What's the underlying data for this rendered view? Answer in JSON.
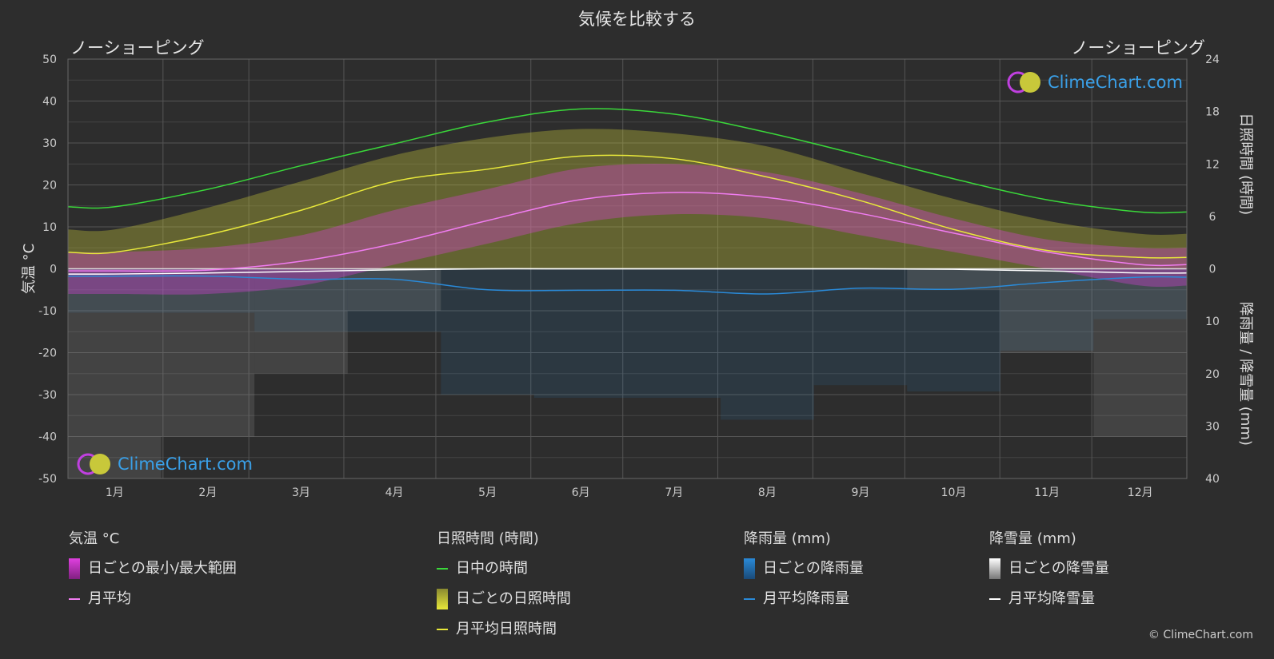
{
  "header": {
    "title": "気候を比較する",
    "city_left": "ノーショーピング",
    "city_right": "ノーショーピング"
  },
  "brand": {
    "text": "ClimeChart.com",
    "copyright": "© ClimeChart.com"
  },
  "colors": {
    "background": "#2d2d2d",
    "daylight": "#3ad83a",
    "sunshine_line": "#e8e83a",
    "temp_avg_line": "#f07cf0",
    "rain_line": "#2a8ad8",
    "snow_line": "#ffffff",
    "temp_range": "#e040e0",
    "sunshine_fill": "#c8c83a"
  },
  "chart_data": {
    "type": "line",
    "x_categories": [
      "1月",
      "2月",
      "3月",
      "4月",
      "5月",
      "6月",
      "7月",
      "8月",
      "9月",
      "10月",
      "11月",
      "12月"
    ],
    "left_axis": {
      "label": "気温 °C",
      "range": [
        -50,
        50
      ],
      "ticks": [
        "50",
        "40",
        "30",
        "20",
        "10",
        "0",
        "-10",
        "-20",
        "-30",
        "-40",
        "-50"
      ]
    },
    "right_axis_top": {
      "label": "日照時間 (時間)",
      "range": [
        0,
        24
      ],
      "ticks": [
        "24",
        "18",
        "12",
        "6",
        "0"
      ]
    },
    "right_axis_bottom": {
      "label": "降雨量 / 降雪量 (mm)",
      "range": [
        0,
        40
      ],
      "ticks": [
        "10",
        "20",
        "30",
        "40"
      ]
    },
    "series": [
      {
        "name": "日中の時間",
        "unit": "hours",
        "values": [
          7.1,
          9.1,
          11.8,
          14.3,
          16.8,
          18.3,
          17.7,
          15.6,
          13.0,
          10.3,
          7.9,
          6.5
        ]
      },
      {
        "name": "月平均日照時間",
        "unit": "hours",
        "values": [
          1.9,
          3.9,
          6.7,
          10.0,
          11.4,
          12.9,
          12.6,
          10.5,
          7.8,
          4.5,
          2.1,
          1.3
        ]
      },
      {
        "name": "月平均",
        "unit": "°C",
        "values": [
          -0.5,
          -0.3,
          1.8,
          6.0,
          11.5,
          16.5,
          18.2,
          17.0,
          13.2,
          8.5,
          4.0,
          1.0
        ]
      },
      {
        "name": "月平均降雨量",
        "unit": "mm",
        "values": [
          1.4,
          1.4,
          2.0,
          2.0,
          4.0,
          4.1,
          4.1,
          4.8,
          3.7,
          3.9,
          2.6,
          1.6
        ]
      },
      {
        "name": "月平均降雪量",
        "unit": "mm",
        "values": [
          1.0,
          0.8,
          0.5,
          0.2,
          0.0,
          0.0,
          0.0,
          0.0,
          0.0,
          0.1,
          0.4,
          0.8
        ]
      }
    ],
    "daily_temp_range": {
      "min": [
        -6,
        -6,
        -4,
        1,
        6,
        11,
        13,
        12,
        8,
        4,
        0,
        -4
      ],
      "max": [
        4,
        5,
        8,
        14,
        19,
        24,
        25,
        23,
        18,
        12,
        7,
        5
      ]
    },
    "daily_sunshine_envelope_hours": [
      4.5,
      7.0,
      10.0,
      13.0,
      15.0,
      16.0,
      15.5,
      14.0,
      11.0,
      8.0,
      5.5,
      4.0
    ]
  },
  "legend": {
    "temp": {
      "heading": "気温 °C",
      "range": "日ごとの最小/最大範囲",
      "avg": "月平均"
    },
    "sun": {
      "heading": "日照時間 (時間)",
      "daylight": "日中の時間",
      "daily": "日ごとの日照時間",
      "avg": "月平均日照時間"
    },
    "rain": {
      "heading": "降雨量 (mm)",
      "daily": "日ごとの降雨量",
      "avg": "月平均降雨量"
    },
    "snow": {
      "heading": "降雪量 (mm)",
      "daily": "日ごとの降雪量",
      "avg": "月平均降雪量"
    }
  }
}
